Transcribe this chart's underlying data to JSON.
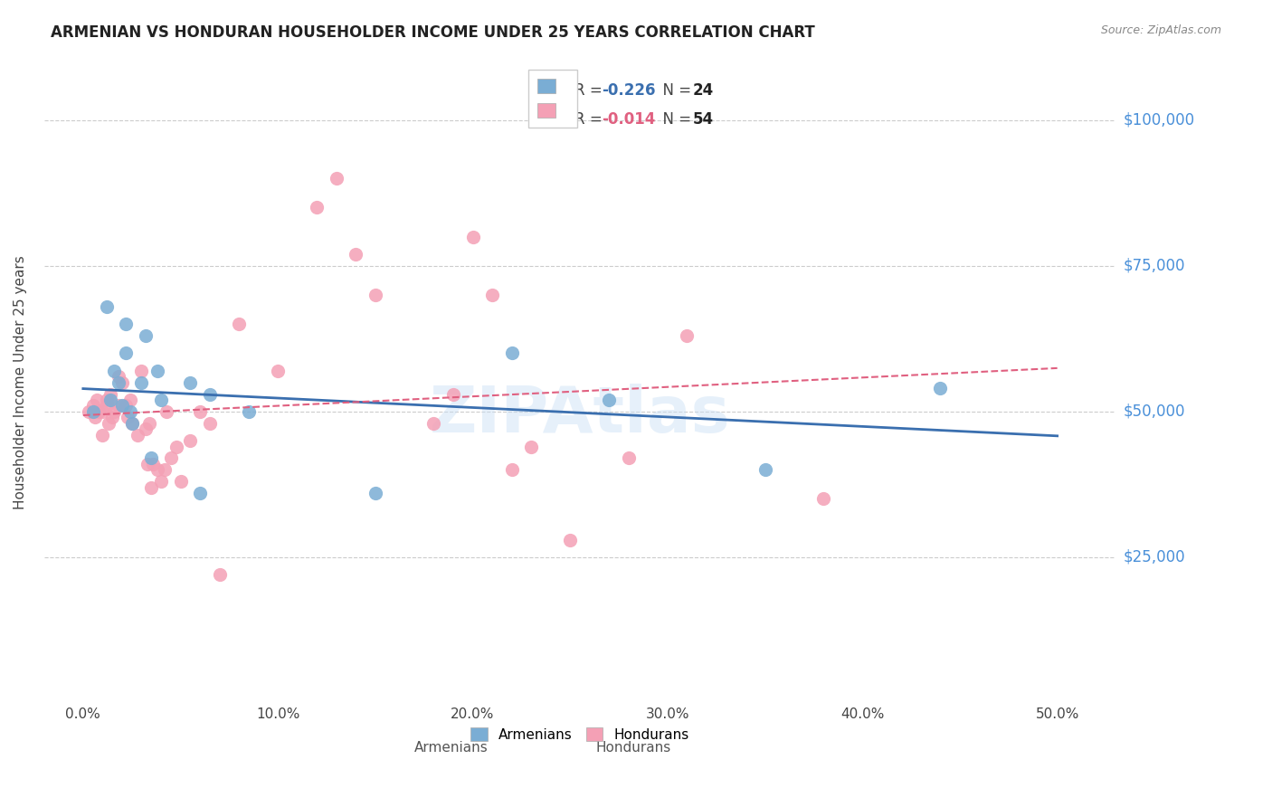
{
  "title": "ARMENIAN VS HONDURAN HOUSEHOLDER INCOME UNDER 25 YEARS CORRELATION CHART",
  "source": "Source: ZipAtlas.com",
  "ylabel": "Householder Income Under 25 years",
  "xlabel_ticks": [
    "0.0%",
    "10.0%",
    "20.0%",
    "30.0%",
    "40.0%",
    "50.0%"
  ],
  "xlabel_vals": [
    0.0,
    0.1,
    0.2,
    0.3,
    0.4,
    0.5
  ],
  "ytick_labels": [
    "$25,000",
    "$50,000",
    "$75,000",
    "$100,000"
  ],
  "ytick_vals": [
    25000,
    50000,
    75000,
    100000
  ],
  "ylim": [
    0,
    110000
  ],
  "xlim": [
    -0.02,
    0.53
  ],
  "background_color": "#ffffff",
  "grid_color": "#cccccc",
  "watermark": "ZIPAtlas",
  "armenians_R": "-0.226",
  "armenians_N": "24",
  "hondurans_R": "-0.014",
  "hondurans_N": "54",
  "armenian_color": "#7aadd4",
  "honduran_color": "#f4a0b5",
  "armenian_line_color": "#3a6faf",
  "honduran_line_color": "#e06080",
  "axis_label_color": "#4a90d9",
  "armenian_x": [
    0.005,
    0.012,
    0.014,
    0.016,
    0.018,
    0.02,
    0.022,
    0.022,
    0.024,
    0.025,
    0.03,
    0.032,
    0.035,
    0.038,
    0.04,
    0.055,
    0.06,
    0.065,
    0.085,
    0.15,
    0.22,
    0.27,
    0.35,
    0.44
  ],
  "armenian_y": [
    50000,
    68000,
    52000,
    57000,
    55000,
    51000,
    60000,
    65000,
    50000,
    48000,
    55000,
    63000,
    42000,
    57000,
    52000,
    55000,
    36000,
    53000,
    50000,
    36000,
    60000,
    52000,
    40000,
    54000
  ],
  "honduran_x": [
    0.003,
    0.005,
    0.006,
    0.007,
    0.008,
    0.01,
    0.01,
    0.012,
    0.012,
    0.013,
    0.014,
    0.015,
    0.016,
    0.018,
    0.018,
    0.02,
    0.022,
    0.023,
    0.024,
    0.025,
    0.028,
    0.03,
    0.032,
    0.033,
    0.034,
    0.035,
    0.036,
    0.038,
    0.04,
    0.042,
    0.043,
    0.045,
    0.048,
    0.05,
    0.055,
    0.06,
    0.065,
    0.07,
    0.08,
    0.1,
    0.12,
    0.13,
    0.14,
    0.15,
    0.18,
    0.19,
    0.2,
    0.21,
    0.22,
    0.23,
    0.25,
    0.28,
    0.31,
    0.38
  ],
  "honduran_y": [
    50000,
    51000,
    49000,
    52000,
    50000,
    50000,
    46000,
    51000,
    52000,
    48000,
    53000,
    49000,
    50000,
    56000,
    51000,
    55000,
    51000,
    49000,
    52000,
    48000,
    46000,
    57000,
    47000,
    41000,
    48000,
    37000,
    41000,
    40000,
    38000,
    40000,
    50000,
    42000,
    44000,
    38000,
    45000,
    50000,
    48000,
    22000,
    65000,
    57000,
    85000,
    90000,
    77000,
    70000,
    48000,
    53000,
    80000,
    70000,
    40000,
    44000,
    28000,
    42000,
    63000,
    35000
  ]
}
